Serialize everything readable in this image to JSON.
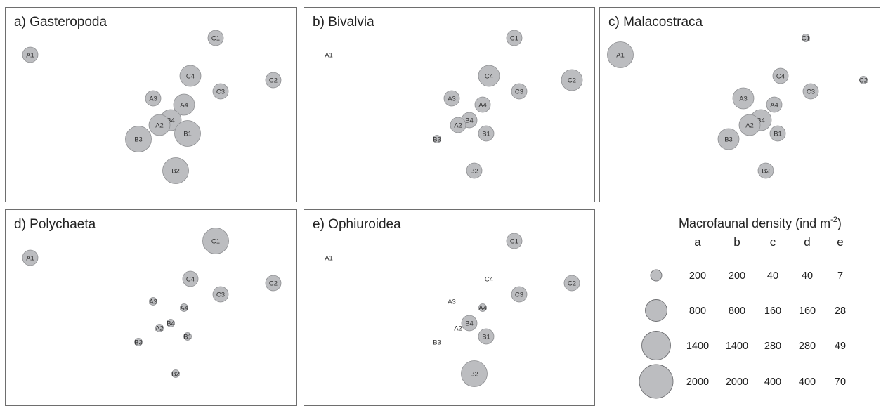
{
  "chart_data": {
    "type": "scatter",
    "panels": [
      {
        "id": "a",
        "title": "a) Gasteropoda",
        "points": [
          {
            "label": "A1",
            "size": "small"
          },
          {
            "label": "C1",
            "size": "small"
          },
          {
            "label": "C4",
            "size": "medium"
          },
          {
            "label": "C2",
            "size": "small"
          },
          {
            "label": "C3",
            "size": "small"
          },
          {
            "label": "A3",
            "size": "small"
          },
          {
            "label": "A4",
            "size": "medium"
          },
          {
            "label": "B4",
            "size": "medium"
          },
          {
            "label": "A2",
            "size": "medium"
          },
          {
            "label": "B1",
            "size": "large"
          },
          {
            "label": "B3",
            "size": "large"
          },
          {
            "label": "B2",
            "size": "large"
          }
        ]
      },
      {
        "id": "b",
        "title": "b) Bivalvia",
        "points": [
          {
            "label": "A1",
            "size": "none"
          },
          {
            "label": "C1",
            "size": "small"
          },
          {
            "label": "C4",
            "size": "medium"
          },
          {
            "label": "C2",
            "size": "medium"
          },
          {
            "label": "C3",
            "size": "small"
          },
          {
            "label": "A3",
            "size": "small"
          },
          {
            "label": "A4",
            "size": "small"
          },
          {
            "label": "B4",
            "size": "small"
          },
          {
            "label": "A2",
            "size": "small"
          },
          {
            "label": "B1",
            "size": "small"
          },
          {
            "label": "B3",
            "size": "tiny"
          },
          {
            "label": "B2",
            "size": "small"
          }
        ]
      },
      {
        "id": "c",
        "title": "c) Malacostraca",
        "points": [
          {
            "label": "A1",
            "size": "large"
          },
          {
            "label": "C1",
            "size": "tiny"
          },
          {
            "label": "C4",
            "size": "small"
          },
          {
            "label": "C2",
            "size": "tiny"
          },
          {
            "label": "C3",
            "size": "small"
          },
          {
            "label": "A3",
            "size": "medium"
          },
          {
            "label": "A4",
            "size": "small"
          },
          {
            "label": "B4",
            "size": "medium"
          },
          {
            "label": "A2",
            "size": "medium"
          },
          {
            "label": "B1",
            "size": "small"
          },
          {
            "label": "B3",
            "size": "medium"
          },
          {
            "label": "B2",
            "size": "small"
          }
        ]
      },
      {
        "id": "d",
        "title": "d) Polychaeta",
        "points": [
          {
            "label": "A1",
            "size": "small"
          },
          {
            "label": "C1",
            "size": "large"
          },
          {
            "label": "C4",
            "size": "small"
          },
          {
            "label": "C2",
            "size": "small"
          },
          {
            "label": "C3",
            "size": "small"
          },
          {
            "label": "A3",
            "size": "tiny"
          },
          {
            "label": "A4",
            "size": "tiny"
          },
          {
            "label": "B4",
            "size": "tiny"
          },
          {
            "label": "A2",
            "size": "tiny"
          },
          {
            "label": "B1",
            "size": "tiny"
          },
          {
            "label": "B3",
            "size": "tiny"
          },
          {
            "label": "B2",
            "size": "tiny"
          }
        ]
      },
      {
        "id": "e",
        "title": "e) Ophiuroidea",
        "points": [
          {
            "label": "A1",
            "size": "none"
          },
          {
            "label": "C1",
            "size": "small"
          },
          {
            "label": "C4",
            "size": "none"
          },
          {
            "label": "C2",
            "size": "small"
          },
          {
            "label": "C3",
            "size": "small"
          },
          {
            "label": "A3",
            "size": "none"
          },
          {
            "label": "A4",
            "size": "tiny"
          },
          {
            "label": "B4",
            "size": "small"
          },
          {
            "label": "A2",
            "size": "none"
          },
          {
            "label": "B1",
            "size": "small"
          },
          {
            "label": "B3",
            "size": "none"
          },
          {
            "label": "B2",
            "size": "large"
          }
        ]
      }
    ],
    "legend": {
      "title": "Macrofaunal density (ind m",
      "title_superscript": "-2",
      "title_close": ")",
      "columns": [
        "a",
        "b",
        "c",
        "d",
        "e"
      ],
      "rows": [
        {
          "values": [
            "200",
            "200",
            "40",
            "40",
            "7"
          ]
        },
        {
          "values": [
            "800",
            "800",
            "160",
            "160",
            "28"
          ]
        },
        {
          "values": [
            "1400",
            "1400",
            "280",
            "280",
            "49"
          ]
        },
        {
          "values": [
            "2000",
            "2000",
            "400",
            "400",
            "70"
          ]
        }
      ]
    },
    "colors": {
      "bubble_fill": "#bcbdc0",
      "bubble_stroke": "#8d8e91",
      "text": "#333333"
    }
  }
}
